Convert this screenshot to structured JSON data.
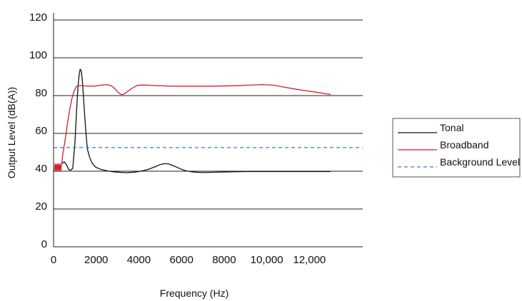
{
  "chart_data": {
    "type": "line",
    "title": "",
    "xlabel": "Frequency (Hz)",
    "ylabel": "Output Level (dB(A))",
    "xlim": [
      0,
      14500
    ],
    "ylim": [
      0,
      120
    ],
    "x_ticks": [
      {
        "value": 0,
        "label": "0"
      },
      {
        "value": 2000,
        "label": "2000"
      },
      {
        "value": 4000,
        "label": "4000"
      },
      {
        "value": 6000,
        "label": "6000"
      },
      {
        "value": 8000,
        "label": "8000"
      },
      {
        "value": 10000,
        "label": "10,000"
      },
      {
        "value": 12000,
        "label": "12,000"
      }
    ],
    "y_ticks": [
      {
        "value": 0,
        "label": "0"
      },
      {
        "value": 20,
        "label": "20"
      },
      {
        "value": 40,
        "label": "40"
      },
      {
        "value": 60,
        "label": "60"
      },
      {
        "value": 80,
        "label": "80"
      },
      {
        "value": 100,
        "label": "100"
      },
      {
        "value": 120,
        "label": "120"
      }
    ],
    "grid": "horizontal",
    "legend_position": "right",
    "series": [
      {
        "name": "Tonal",
        "color": "#111111",
        "style": "solid",
        "x": [
          400,
          500,
          600,
          700,
          800,
          900,
          1000,
          1050,
          1100,
          1150,
          1200,
          1250,
          1300,
          1350,
          1400,
          1450,
          1500,
          1550,
          1600,
          1700,
          1800,
          1900,
          2000,
          2100,
          2200,
          2400,
          2600,
          2800,
          3000,
          3400,
          3800,
          4000,
          4400,
          4800,
          5000,
          5200,
          5400,
          5600,
          5800,
          6000,
          6200,
          6600,
          7000,
          8000,
          9000,
          10000,
          11000,
          12000,
          13000
        ],
        "y": [
          44,
          45,
          43.5,
          41,
          40.5,
          41.5,
          55,
          66,
          76,
          85,
          91,
          94,
          93,
          88,
          80,
          71,
          63,
          56,
          51,
          47,
          44.5,
          43,
          42,
          41.5,
          41,
          40.5,
          40,
          39.7,
          39.5,
          39.2,
          39.5,
          39.8,
          40.8,
          42.5,
          43.5,
          44,
          43.8,
          43,
          42,
          41,
          40.2,
          39.5,
          39.3,
          39.6,
          39.8,
          39.8,
          39.8,
          39.8,
          39.8
        ]
      },
      {
        "name": "Broadband",
        "color": "#d42027",
        "style": "solid",
        "x": [
          380,
          450,
          550,
          650,
          750,
          850,
          950,
          1050,
          1150,
          1300,
          1500,
          1700,
          1900,
          2100,
          2300,
          2500,
          2700,
          2850,
          3000,
          3100,
          3200,
          3350,
          3500,
          3700,
          3900,
          4100,
          4400,
          4800,
          5500,
          6500,
          7500,
          8500,
          9200,
          9800,
          10300,
          10800,
          11300,
          11800,
          12300,
          12800,
          13000
        ],
        "y": [
          44,
          50,
          57,
          65,
          72,
          78,
          82,
          84.5,
          85.2,
          85.3,
          85.1,
          85,
          85,
          85.3,
          85.6,
          85.8,
          85.2,
          84,
          82,
          81,
          80.5,
          81,
          82.5,
          84,
          85.2,
          85.6,
          85.5,
          85.3,
          85,
          85,
          85,
          85.2,
          85.5,
          85.8,
          85.5,
          84.5,
          83.5,
          82.6,
          81.8,
          80.9,
          80.6
        ]
      },
      {
        "name": "Background Level",
        "color": "#3a7fc0",
        "style": "dashed",
        "x": [
          0,
          14500
        ],
        "y": [
          52.5,
          52.5
        ]
      }
    ],
    "low_freq_red_spikes": {
      "x": [
        40,
        70,
        100,
        130,
        160,
        190,
        220,
        250,
        280,
        310,
        340,
        380
      ],
      "y": [
        40,
        44,
        40,
        44,
        40,
        44,
        40,
        44,
        40,
        44,
        40,
        44
      ]
    }
  }
}
